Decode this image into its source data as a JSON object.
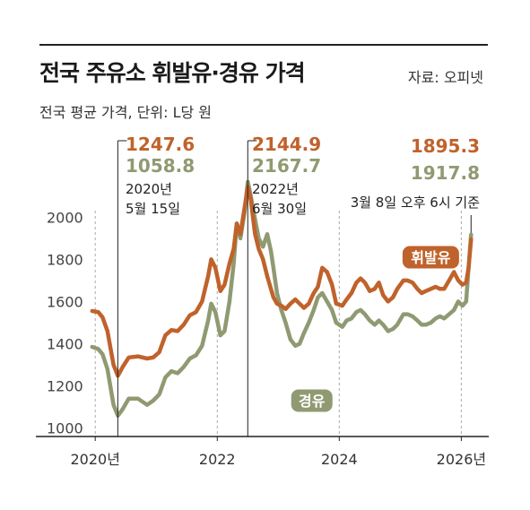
{
  "header": {
    "title": "전국 주유소 휘발유·경유 가격",
    "source": "자료: 오피넷",
    "subtitle": "전국 평균 가격, 단위: L당 원"
  },
  "colors": {
    "gasoline": "#c0622b",
    "diesel": "#8f9a72",
    "axis": "#222222",
    "grid": "#aaaaaa"
  },
  "chart_data": {
    "type": "line",
    "title": "전국 주유소 휘발유·경유 가격",
    "subtitle": "전국 평균 가격, 단위: L당 원",
    "x_range": [
      2019.85,
      2026.45
    ],
    "ylim": [
      960,
      2180
    ],
    "y_ticks": [
      1000,
      1200,
      1400,
      1600,
      1800,
      2000
    ],
    "x_ticks": [
      {
        "value": 2020.0,
        "label": "2020년"
      },
      {
        "value": 2022.0,
        "label": "2022"
      },
      {
        "value": 2024.0,
        "label": "2024"
      },
      {
        "value": 2026.0,
        "label": "2026년"
      }
    ],
    "grid": "vertical dashed at year ticks",
    "series": [
      {
        "name": "휘발유",
        "color": "#c0622b",
        "points": [
          [
            2019.95,
            1555
          ],
          [
            2020.05,
            1550
          ],
          [
            2020.12,
            1525
          ],
          [
            2020.2,
            1460
          ],
          [
            2020.3,
            1300
          ],
          [
            2020.37,
            1247.6
          ],
          [
            2020.45,
            1290
          ],
          [
            2020.55,
            1335
          ],
          [
            2020.7,
            1340
          ],
          [
            2020.85,
            1330
          ],
          [
            2020.95,
            1335
          ],
          [
            2021.05,
            1360
          ],
          [
            2021.15,
            1440
          ],
          [
            2021.25,
            1465
          ],
          [
            2021.35,
            1460
          ],
          [
            2021.45,
            1490
          ],
          [
            2021.55,
            1535
          ],
          [
            2021.65,
            1550
          ],
          [
            2021.75,
            1600
          ],
          [
            2021.85,
            1720
          ],
          [
            2021.9,
            1800
          ],
          [
            2021.97,
            1760
          ],
          [
            2022.05,
            1650
          ],
          [
            2022.12,
            1680
          ],
          [
            2022.2,
            1780
          ],
          [
            2022.27,
            1850
          ],
          [
            2022.32,
            1970
          ],
          [
            2022.38,
            1920
          ],
          [
            2022.45,
            2050
          ],
          [
            2022.5,
            2144.9
          ],
          [
            2022.55,
            2080
          ],
          [
            2022.62,
            1920
          ],
          [
            2022.68,
            1850
          ],
          [
            2022.75,
            1800
          ],
          [
            2022.82,
            1720
          ],
          [
            2022.88,
            1660
          ],
          [
            2022.92,
            1620
          ],
          [
            2022.98,
            1590
          ],
          [
            2023.05,
            1580
          ],
          [
            2023.12,
            1565
          ],
          [
            2023.2,
            1590
          ],
          [
            2023.28,
            1610
          ],
          [
            2023.35,
            1590
          ],
          [
            2023.42,
            1570
          ],
          [
            2023.5,
            1590
          ],
          [
            2023.58,
            1640
          ],
          [
            2023.65,
            1670
          ],
          [
            2023.72,
            1760
          ],
          [
            2023.8,
            1740
          ],
          [
            2023.88,
            1680
          ],
          [
            2023.95,
            1590
          ],
          [
            2024.05,
            1580
          ],
          [
            2024.12,
            1610
          ],
          [
            2024.2,
            1640
          ],
          [
            2024.28,
            1690
          ],
          [
            2024.35,
            1710
          ],
          [
            2024.42,
            1690
          ],
          [
            2024.5,
            1650
          ],
          [
            2024.58,
            1660
          ],
          [
            2024.65,
            1690
          ],
          [
            2024.72,
            1630
          ],
          [
            2024.8,
            1600
          ],
          [
            2024.88,
            1620
          ],
          [
            2024.95,
            1660
          ],
          [
            2025.05,
            1700
          ],
          [
            2025.12,
            1700
          ],
          [
            2025.2,
            1690
          ],
          [
            2025.28,
            1660
          ],
          [
            2025.35,
            1640
          ],
          [
            2025.42,
            1650
          ],
          [
            2025.5,
            1660
          ],
          [
            2025.58,
            1670
          ],
          [
            2025.65,
            1660
          ],
          [
            2025.72,
            1660
          ],
          [
            2025.8,
            1700
          ],
          [
            2025.88,
            1740
          ],
          [
            2025.95,
            1700
          ],
          [
            2026.02,
            1680
          ],
          [
            2026.08,
            1690
          ],
          [
            2026.12,
            1760
          ],
          [
            2026.16,
            1895.3
          ]
        ]
      },
      {
        "name": "경유",
        "color": "#8f9a72",
        "points": [
          [
            2019.95,
            1385
          ],
          [
            2020.05,
            1375
          ],
          [
            2020.12,
            1350
          ],
          [
            2020.2,
            1280
          ],
          [
            2020.3,
            1110
          ],
          [
            2020.37,
            1058.8
          ],
          [
            2020.45,
            1090
          ],
          [
            2020.55,
            1140
          ],
          [
            2020.7,
            1140
          ],
          [
            2020.85,
            1110
          ],
          [
            2020.95,
            1130
          ],
          [
            2021.05,
            1160
          ],
          [
            2021.15,
            1240
          ],
          [
            2021.25,
            1270
          ],
          [
            2021.35,
            1260
          ],
          [
            2021.45,
            1290
          ],
          [
            2021.55,
            1330
          ],
          [
            2021.65,
            1345
          ],
          [
            2021.75,
            1390
          ],
          [
            2021.85,
            1510
          ],
          [
            2021.9,
            1590
          ],
          [
            2021.97,
            1550
          ],
          [
            2022.05,
            1440
          ],
          [
            2022.12,
            1460
          ],
          [
            2022.2,
            1600
          ],
          [
            2022.27,
            1780
          ],
          [
            2022.32,
            1970
          ],
          [
            2022.38,
            1900
          ],
          [
            2022.45,
            2030
          ],
          [
            2022.5,
            2167.7
          ],
          [
            2022.55,
            2100
          ],
          [
            2022.62,
            1990
          ],
          [
            2022.68,
            1900
          ],
          [
            2022.75,
            1860
          ],
          [
            2022.82,
            1920
          ],
          [
            2022.88,
            1840
          ],
          [
            2022.92,
            1760
          ],
          [
            2022.98,
            1640
          ],
          [
            2023.05,
            1560
          ],
          [
            2023.12,
            1500
          ],
          [
            2023.2,
            1420
          ],
          [
            2023.28,
            1390
          ],
          [
            2023.35,
            1400
          ],
          [
            2023.42,
            1450
          ],
          [
            2023.5,
            1500
          ],
          [
            2023.58,
            1560
          ],
          [
            2023.65,
            1620
          ],
          [
            2023.72,
            1640
          ],
          [
            2023.8,
            1600
          ],
          [
            2023.88,
            1560
          ],
          [
            2023.95,
            1500
          ],
          [
            2024.05,
            1480
          ],
          [
            2024.12,
            1510
          ],
          [
            2024.2,
            1520
          ],
          [
            2024.28,
            1550
          ],
          [
            2024.35,
            1560
          ],
          [
            2024.42,
            1540
          ],
          [
            2024.5,
            1510
          ],
          [
            2024.58,
            1490
          ],
          [
            2024.65,
            1510
          ],
          [
            2024.72,
            1490
          ],
          [
            2024.8,
            1460
          ],
          [
            2024.88,
            1470
          ],
          [
            2024.95,
            1490
          ],
          [
            2025.05,
            1540
          ],
          [
            2025.12,
            1540
          ],
          [
            2025.2,
            1530
          ],
          [
            2025.28,
            1510
          ],
          [
            2025.35,
            1490
          ],
          [
            2025.42,
            1490
          ],
          [
            2025.5,
            1500
          ],
          [
            2025.58,
            1520
          ],
          [
            2025.65,
            1530
          ],
          [
            2025.72,
            1520
          ],
          [
            2025.8,
            1540
          ],
          [
            2025.88,
            1560
          ],
          [
            2025.95,
            1600
          ],
          [
            2026.02,
            1580
          ],
          [
            2026.08,
            1600
          ],
          [
            2026.12,
            1760
          ],
          [
            2026.16,
            1917.8
          ]
        ]
      }
    ],
    "annotations": [
      {
        "x": 2020.37,
        "gasoline": "1247.6",
        "diesel": "1058.8",
        "date_lines": [
          "2020년",
          "5월 15일"
        ]
      },
      {
        "x": 2022.5,
        "gasoline": "2144.9",
        "diesel": "2167.7",
        "date_lines": [
          "2022년",
          "6월 30일"
        ]
      },
      {
        "x": 2026.16,
        "gasoline": "1895.3",
        "diesel": "1917.8",
        "date_lines": [
          "3월 8일 오후 6시 기준"
        ]
      }
    ],
    "series_labels": [
      {
        "series": "휘발유",
        "x": 2025.5,
        "y": 1810
      },
      {
        "series": "경유",
        "x": 2023.55,
        "y": 1130
      }
    ]
  }
}
